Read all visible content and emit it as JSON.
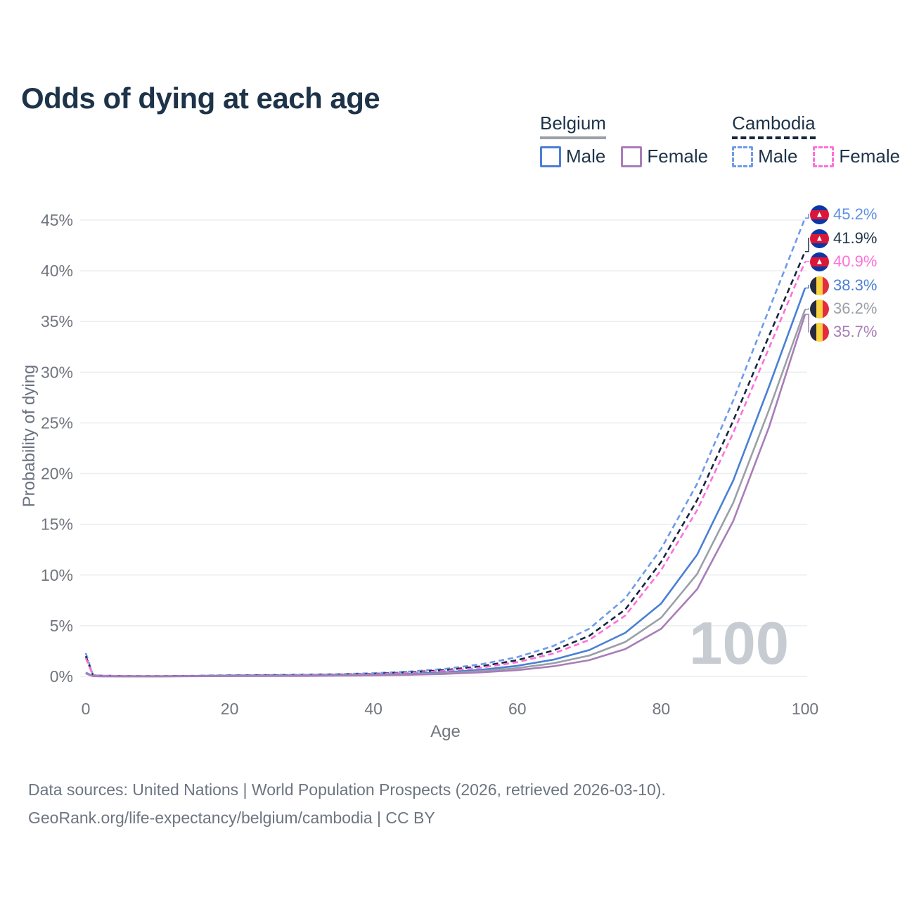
{
  "title": "Odds of dying at each age",
  "legend": {
    "belgium": {
      "title": "Belgium",
      "male_label": "Male",
      "female_label": "Female"
    },
    "cambodia": {
      "title": "Cambodia",
      "male_label": "Male",
      "female_label": "Female"
    }
  },
  "colors": {
    "title": "#1d3349",
    "axis_text": "#71757d",
    "grid": "#ebedef",
    "watermark": "#c7ccd2",
    "legend_text": "#1d3349",
    "belgium_male": "#4a7fd4",
    "belgium_both": "#9aa0a6",
    "belgium_female": "#a87db8",
    "cambodia_male": "#6e9be8",
    "cambodia_both": "#16263f",
    "cambodia_female": "#ff6fd8"
  },
  "footer": {
    "line1": "Data sources: United Nations | World Population Prospects (2026, retrieved 2026-03-10).",
    "line2": "GeoRank.org/life-expectancy/belgium/cambodia | CC BY"
  },
  "chart_data": {
    "type": "line",
    "title": "Odds of dying at each age",
    "xlabel": "Age",
    "ylabel": "Probability of dying",
    "xlim": [
      0,
      100
    ],
    "ylim": [
      0,
      45
    ],
    "x_ticks": [
      0,
      20,
      40,
      60,
      80,
      100
    ],
    "y_ticks": [
      0,
      5,
      10,
      15,
      20,
      25,
      30,
      35,
      40,
      45
    ],
    "y_tick_labels": [
      "0%",
      "5%",
      "10%",
      "15%",
      "20%",
      "25%",
      "30%",
      "35%",
      "40%",
      "45%"
    ],
    "grid": "horizontal",
    "legend_position": "top-right",
    "watermark": "100",
    "x": [
      0,
      1,
      2,
      5,
      10,
      15,
      20,
      25,
      30,
      35,
      40,
      45,
      50,
      55,
      60,
      65,
      70,
      75,
      80,
      85,
      90,
      95,
      100
    ],
    "series": [
      {
        "id": "cambodia-male",
        "name": "Cambodia Male",
        "country": "Cambodia",
        "sex": "Male",
        "style": "dashed",
        "color": "#6e9be8",
        "values": [
          2.3,
          0.14,
          0.08,
          0.04,
          0.03,
          0.06,
          0.11,
          0.14,
          0.17,
          0.22,
          0.32,
          0.48,
          0.75,
          1.2,
          1.9,
          3.0,
          4.7,
          7.7,
          12.6,
          19.0,
          27.2,
          36.2,
          45.2
        ]
      },
      {
        "id": "cambodia-both",
        "name": "Cambodia Both sexes",
        "country": "Cambodia",
        "sex": "Both",
        "style": "dashed",
        "color": "#16263f",
        "values": [
          2.0,
          0.12,
          0.07,
          0.035,
          0.025,
          0.05,
          0.09,
          0.11,
          0.14,
          0.18,
          0.26,
          0.4,
          0.63,
          1.0,
          1.6,
          2.55,
          4.0,
          6.6,
          11.3,
          17.4,
          25.2,
          33.6,
          41.9
        ]
      },
      {
        "id": "cambodia-female",
        "name": "Cambodia Female",
        "country": "Cambodia",
        "sex": "Female",
        "style": "dashed",
        "color": "#ff6fd8",
        "values": [
          1.8,
          0.11,
          0.06,
          0.03,
          0.02,
          0.04,
          0.07,
          0.09,
          0.12,
          0.15,
          0.22,
          0.34,
          0.54,
          0.87,
          1.4,
          2.25,
          3.6,
          6.0,
          10.5,
          16.4,
          24.0,
          32.4,
          40.9
        ]
      },
      {
        "id": "belgium-male",
        "name": "Belgium Male",
        "country": "Belgium",
        "sex": "Male",
        "style": "solid",
        "color": "#4a7fd4",
        "values": [
          0.38,
          0.03,
          0.02,
          0.01,
          0.01,
          0.03,
          0.06,
          0.07,
          0.08,
          0.11,
          0.16,
          0.25,
          0.4,
          0.65,
          1.05,
          1.65,
          2.6,
          4.3,
          7.2,
          12.0,
          19.3,
          28.6,
          38.3
        ]
      },
      {
        "id": "belgium-both",
        "name": "Belgium Both sexes",
        "country": "Belgium",
        "sex": "Both",
        "style": "solid",
        "color": "#9aa0a6",
        "values": [
          0.33,
          0.025,
          0.015,
          0.01,
          0.01,
          0.02,
          0.045,
          0.05,
          0.06,
          0.09,
          0.13,
          0.2,
          0.32,
          0.52,
          0.82,
          1.3,
          2.05,
          3.4,
          5.8,
          10.1,
          17.1,
          26.3,
          36.2
        ]
      },
      {
        "id": "belgium-female",
        "name": "Belgium Female",
        "country": "Belgium",
        "sex": "Female",
        "style": "solid",
        "color": "#a87db8",
        "values": [
          0.29,
          0.02,
          0.01,
          0.01,
          0.01,
          0.015,
          0.03,
          0.035,
          0.045,
          0.07,
          0.1,
          0.16,
          0.25,
          0.4,
          0.62,
          1.0,
          1.6,
          2.7,
          4.7,
          8.6,
          15.3,
          24.6,
          35.7
        ]
      }
    ],
    "end_labels": [
      {
        "text": "45.2%",
        "flag": "cambodia",
        "series": "Cambodia Male",
        "color": "#5e8fe2"
      },
      {
        "text": "41.9%",
        "flag": "cambodia",
        "series": "Cambodia Both sexes",
        "color": "#1d3349"
      },
      {
        "text": "40.9%",
        "flag": "cambodia",
        "series": "Cambodia Female",
        "color": "#ff6fd8"
      },
      {
        "text": "38.3%",
        "flag": "belgium",
        "series": "Belgium Male",
        "color": "#4a7fd4"
      },
      {
        "text": "36.2%",
        "flag": "belgium",
        "series": "Belgium Both sexes",
        "color": "#9aa0a6"
      },
      {
        "text": "35.7%",
        "flag": "belgium",
        "series": "Belgium Female",
        "color": "#a87db8"
      }
    ]
  }
}
